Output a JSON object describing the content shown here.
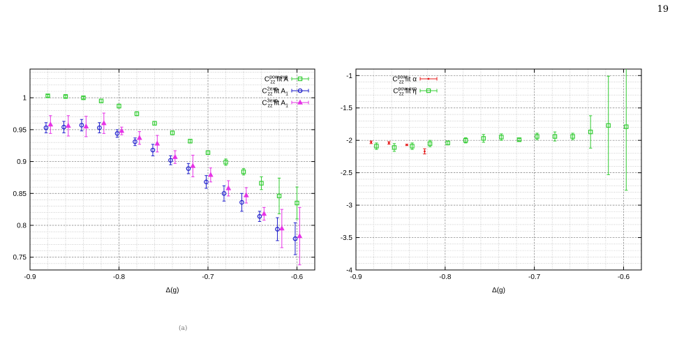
{
  "page_number": "19",
  "caption_mark": "(a)",
  "chart_data": [
    {
      "type": "scatter",
      "title": "",
      "xlabel": "Δ(g)",
      "ylabel": "",
      "xlim": [
        -0.9,
        -0.58
      ],
      "ylim": [
        0.73,
        1.045
      ],
      "xticks": [
        -0.9,
        -0.8,
        -0.7,
        -0.6
      ],
      "xtick_labels": [
        "-0.9",
        "-0.8",
        "-0.7",
        "-0.6"
      ],
      "yticks": [
        0.75,
        0.8,
        0.85,
        0.9,
        0.95,
        1.0
      ],
      "ytick_labels": [
        "0.75",
        "0.8",
        "0.85",
        "0.9",
        "0.95",
        "1"
      ],
      "grid": true,
      "legend_position": "top-right",
      "series": [
        {
          "name": "C_zz^pow-exp fit A",
          "legend": {
            "main": "C",
            "sub": "zz",
            "sup": "pow-exp",
            "tail": " fit A"
          },
          "color": "#33cc33",
          "marker": "square",
          "x": [
            -0.88,
            -0.86,
            -0.84,
            -0.82,
            -0.8,
            -0.78,
            -0.76,
            -0.74,
            -0.72,
            -0.7,
            -0.68,
            -0.66,
            -0.64,
            -0.62,
            -0.6
          ],
          "y": [
            1.003,
            1.002,
            1.0,
            0.995,
            0.987,
            0.975,
            0.96,
            0.945,
            0.932,
            0.914,
            0.899,
            0.884,
            0.866,
            0.846,
            0.835
          ],
          "err": [
            0.002,
            0.002,
            0.002,
            0.003,
            0.003,
            0.003,
            0.003,
            0.003,
            0.003,
            0.003,
            0.005,
            0.005,
            0.01,
            0.028,
            0.025
          ]
        },
        {
          "name": "C_zz^2exp fit A_1",
          "legend": {
            "main": "C",
            "sub": "zz",
            "sup": "2exp",
            "tail": " fit A",
            "tail_sub": "1"
          },
          "color": "#1f1fcc",
          "marker": "circle",
          "x": [
            -0.882,
            -0.862,
            -0.842,
            -0.822,
            -0.802,
            -0.782,
            -0.762,
            -0.742,
            -0.722,
            -0.702,
            -0.682,
            -0.662,
            -0.642,
            -0.622,
            -0.602
          ],
          "y": [
            0.953,
            0.954,
            0.957,
            0.953,
            0.944,
            0.931,
            0.918,
            0.902,
            0.889,
            0.868,
            0.85,
            0.836,
            0.814,
            0.794,
            0.779
          ],
          "err": [
            0.008,
            0.009,
            0.009,
            0.008,
            0.006,
            0.006,
            0.009,
            0.007,
            0.008,
            0.01,
            0.012,
            0.014,
            0.008,
            0.018,
            0.025
          ]
        },
        {
          "name": "C_zz^3exp fit A_1",
          "legend": {
            "main": "C",
            "sub": "zz",
            "sup": "3exp",
            "tail": " fit A",
            "tail_sub": "1"
          },
          "color": "#e633e6",
          "marker": "triangle",
          "x": [
            -0.877,
            -0.857,
            -0.837,
            -0.817,
            -0.797,
            -0.777,
            -0.757,
            -0.737,
            -0.717,
            -0.697,
            -0.677,
            -0.657,
            -0.637,
            -0.617,
            -0.597
          ],
          "y": [
            0.958,
            0.956,
            0.955,
            0.96,
            0.948,
            0.937,
            0.928,
            0.907,
            0.893,
            0.879,
            0.858,
            0.847,
            0.818,
            0.795,
            0.783
          ],
          "err": [
            0.014,
            0.016,
            0.016,
            0.016,
            0.006,
            0.01,
            0.013,
            0.01,
            0.017,
            0.011,
            0.012,
            0.012,
            0.01,
            0.03,
            0.045
          ]
        }
      ]
    },
    {
      "type": "scatter",
      "title": "",
      "xlabel": "Δ(g)",
      "ylabel": "",
      "xlim": [
        -0.9,
        -0.58
      ],
      "ylim": [
        -4,
        -0.9
      ],
      "xticks": [
        -0.9,
        -0.8,
        -0.7,
        -0.6
      ],
      "xtick_labels": [
        "-0.9",
        "-0.8",
        "-0.7",
        "-0.6"
      ],
      "yticks": [
        -4,
        -3.5,
        -3,
        -2.5,
        -2,
        -1.5,
        -1
      ],
      "ytick_labels": [
        "-4",
        "-3.5",
        "-3",
        "-2.5",
        "-2",
        "-1.5",
        "-1"
      ],
      "grid": true,
      "legend_position": "top-left",
      "series": [
        {
          "name": "C_zz^pow fit α",
          "legend": {
            "main": "C",
            "sub": "zz",
            "sup": "pow",
            "tail": " fit α"
          },
          "color": "#e61a1a",
          "marker": "dot",
          "x": [
            -0.883,
            -0.863,
            -0.843,
            -0.823
          ],
          "y": [
            -2.03,
            -2.04,
            -2.07,
            -2.17
          ],
          "err": [
            0.02,
            0.02,
            0.01,
            0.04
          ]
        },
        {
          "name": "C_zz^pow-exp fit η",
          "legend": {
            "main": "C",
            "sub": "zz",
            "sup": "pow-exp",
            "tail": " fit η"
          },
          "color": "#33cc33",
          "marker": "square",
          "x": [
            -0.877,
            -0.857,
            -0.837,
            -0.817,
            -0.797,
            -0.777,
            -0.757,
            -0.737,
            -0.717,
            -0.697,
            -0.677,
            -0.657,
            -0.637,
            -0.617,
            -0.597
          ],
          "y": [
            -2.09,
            -2.11,
            -2.09,
            -2.05,
            -2.04,
            -2.0,
            -1.97,
            -1.95,
            -1.99,
            -1.94,
            -1.94,
            -1.94,
            -1.87,
            -1.77,
            -1.79
          ],
          "err": [
            0.05,
            0.06,
            0.05,
            0.05,
            0.03,
            0.04,
            0.06,
            0.05,
            0.02,
            0.05,
            0.07,
            0.05,
            0.25,
            0.76,
            0.98
          ]
        }
      ]
    }
  ]
}
